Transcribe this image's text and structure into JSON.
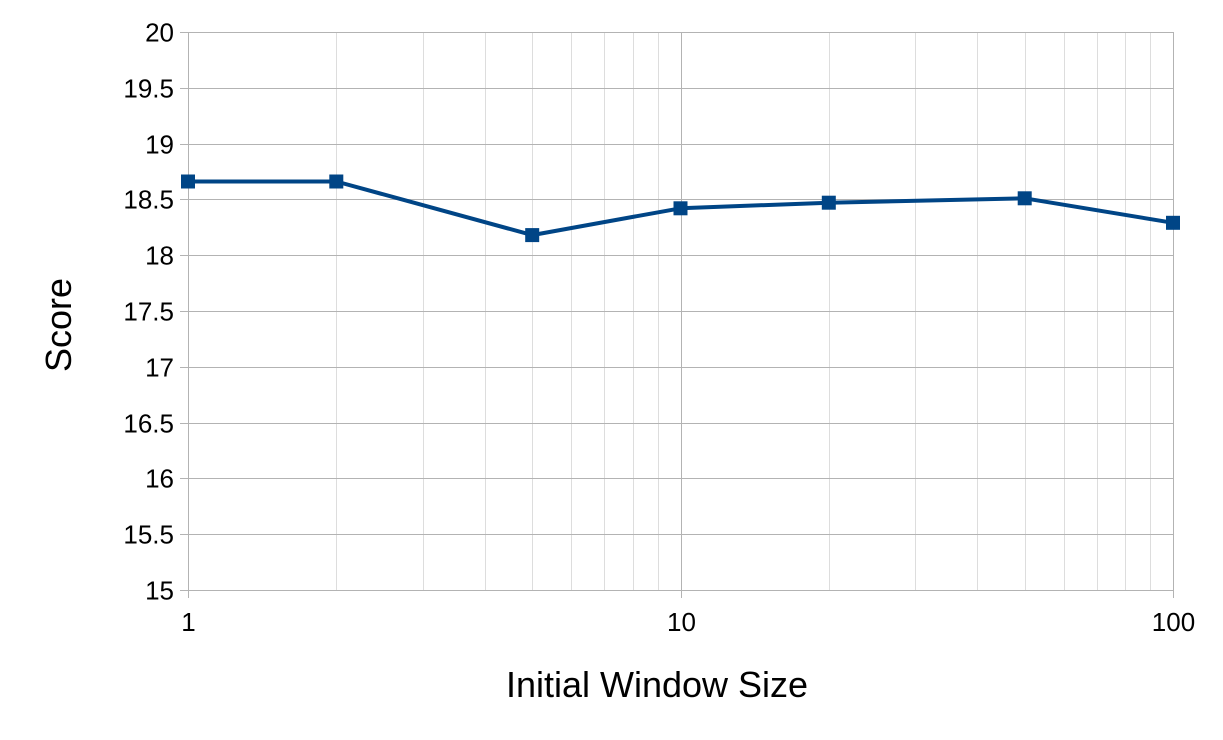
{
  "chart_data": {
    "type": "line",
    "title": "",
    "xlabel": "Initial Window Size",
    "ylabel": "Score",
    "x_scale": "log",
    "xlim": [
      1,
      100
    ],
    "ylim": [
      15,
      20
    ],
    "x_ticks": [
      "1",
      "10",
      "100"
    ],
    "y_ticks": [
      "15",
      "15.5",
      "16",
      "16.5",
      "17",
      "17.5",
      "18",
      "18.5",
      "19",
      "19.5",
      "20"
    ],
    "grid": true,
    "legend": "none",
    "series": [
      {
        "color": "#004586",
        "marker": "square",
        "x": [
          1,
          2,
          5,
          10,
          20,
          50,
          100
        ],
        "y": [
          18.66,
          18.66,
          18.18,
          18.42,
          18.47,
          18.51,
          18.29
        ]
      }
    ]
  }
}
